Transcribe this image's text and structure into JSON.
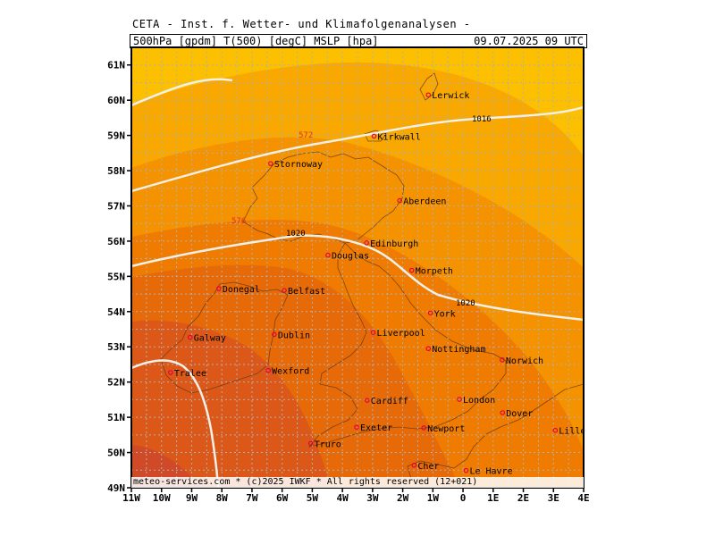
{
  "title": "CETA - Inst. f. Wetter- und Klimafolgenanalysen -",
  "header": {
    "left": "500hPa [gpdm] T(500) [degC] MSLP [hpa]",
    "right": "09.07.2025 09 UTC"
  },
  "footer": "meteo-services.com * (c)2025 IWKF * All rights reserved (12+021)",
  "axes": {
    "x_ticks": [
      "11W",
      "10W",
      "9W",
      "8W",
      "7W",
      "6W",
      "5W",
      "4W",
      "3W",
      "2W",
      "1W",
      "0",
      "1E",
      "2E",
      "3E",
      "4E"
    ],
    "y_ticks": [
      "61N",
      "60N",
      "59N",
      "58N",
      "57N",
      "56N",
      "55N",
      "54N",
      "53N",
      "52N",
      "51N",
      "50N",
      "49N"
    ]
  },
  "isobars": [
    "1016",
    "1020",
    "1020"
  ],
  "geopotential_labels": [
    "572",
    "576"
  ],
  "cities": [
    {
      "name": "Lerwick",
      "lon": -1.15,
      "lat": 60.15
    },
    {
      "name": "Kirkwall",
      "lon": -2.95,
      "lat": 58.98
    },
    {
      "name": "Stornoway",
      "lon": -6.38,
      "lat": 58.2
    },
    {
      "name": "Aberdeen",
      "lon": -2.1,
      "lat": 57.15
    },
    {
      "name": "Edinburgh",
      "lon": -3.2,
      "lat": 55.95
    },
    {
      "name": "Douglas",
      "lon": -4.48,
      "lat": 55.6
    },
    {
      "name": "Morpeth",
      "lon": -1.7,
      "lat": 55.17
    },
    {
      "name": "Donegal",
      "lon": -8.1,
      "lat": 54.65
    },
    {
      "name": "Belfast",
      "lon": -5.93,
      "lat": 54.6
    },
    {
      "name": "York",
      "lon": -1.08,
      "lat": 53.96
    },
    {
      "name": "Galway",
      "lon": -9.05,
      "lat": 53.27
    },
    {
      "name": "Dublin",
      "lon": -6.26,
      "lat": 53.35
    },
    {
      "name": "Liverpool",
      "lon": -2.98,
      "lat": 53.41
    },
    {
      "name": "Nottingham",
      "lon": -1.15,
      "lat": 52.95
    },
    {
      "name": "Norwich",
      "lon": 1.3,
      "lat": 52.63
    },
    {
      "name": "Wexford",
      "lon": -6.46,
      "lat": 52.33
    },
    {
      "name": "Tralee",
      "lon": -9.7,
      "lat": 52.27
    },
    {
      "name": "Cardiff",
      "lon": -3.18,
      "lat": 51.48
    },
    {
      "name": "London",
      "lon": -0.12,
      "lat": 51.51
    },
    {
      "name": "Dover",
      "lon": 1.31,
      "lat": 51.13
    },
    {
      "name": "Exeter",
      "lon": -3.53,
      "lat": 50.72
    },
    {
      "name": "Newport",
      "lon": -1.3,
      "lat": 50.7
    },
    {
      "name": "Truro",
      "lon": -5.05,
      "lat": 50.26
    },
    {
      "name": "Lille",
      "lon": 3.06,
      "lat": 50.63
    },
    {
      "name": "Le Havre",
      "lon": 0.1,
      "lat": 49.49
    },
    {
      "name": "Cher",
      "lon": -1.62,
      "lat": 49.64
    }
  ],
  "colors": {
    "band_1": "#fcc000",
    "band_2": "#f9a800",
    "band_3": "#f59200",
    "band_4": "#ef7c00",
    "band_5": "#e66a08",
    "band_6": "#dc5818",
    "band_7": "#d04a28",
    "isobar": "#f0f0e8",
    "city_marker": "#e8003c",
    "grid": "#b0b0b0"
  }
}
